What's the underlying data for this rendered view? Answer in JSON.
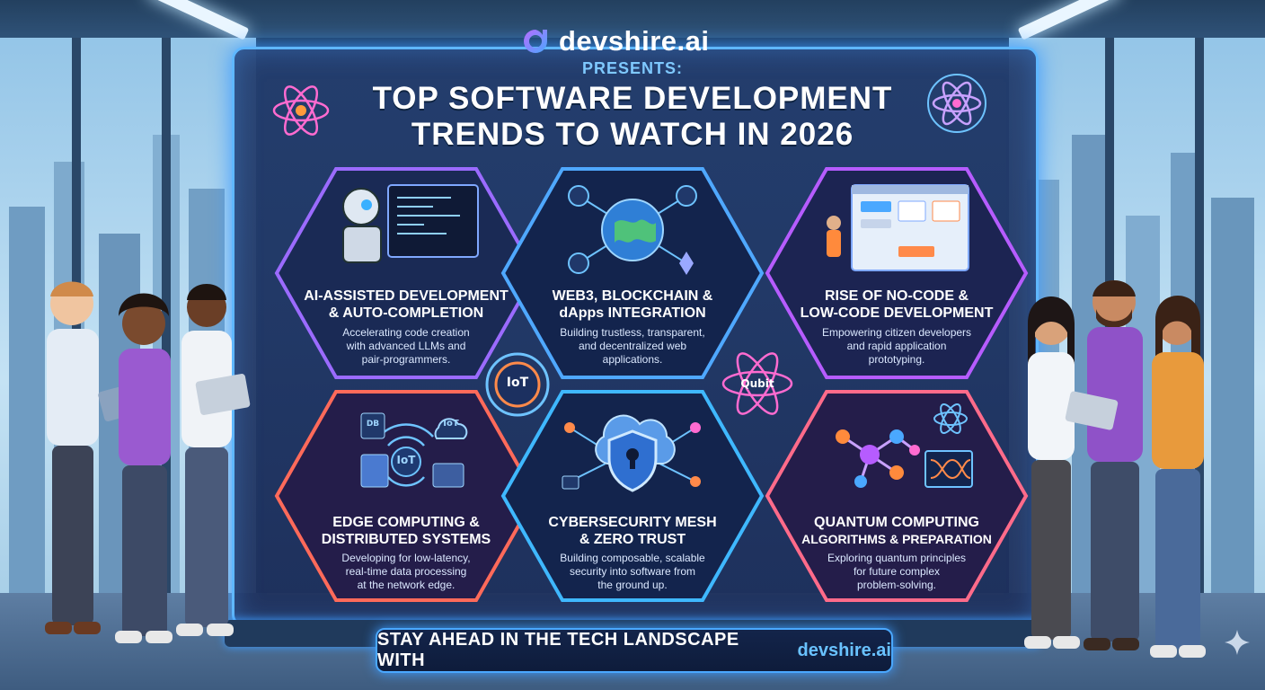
{
  "header": {
    "brand": "devshire.ai",
    "presents": "PRESENTS:",
    "title_line1": "TOP SOFTWARE DEVELOPMENT",
    "title_line2": "TRENDS TO WATCH IN 2026"
  },
  "cards": [
    {
      "title1": "AI-ASSISTED DEVELOPMENT",
      "title2": "& AUTO-COMPLETION",
      "desc1": "Accelerating code creation",
      "desc2": "with advanced LLMs and",
      "desc3": "pair-programmers.",
      "color": "#9b6bff"
    },
    {
      "title1": "WEB3, BLOCKCHAIN &",
      "title2": "dApps INTEGRATION",
      "desc1": "Building trustless, transparent,",
      "desc2": "and decentralized web",
      "desc3": "applications.",
      "color": "#4fa8ff"
    },
    {
      "title1": "RISE OF NO-CODE &",
      "title2": "LOW-CODE DEVELOPMENT",
      "desc1": "Empowering citizen developers",
      "desc2": "and rapid application",
      "desc3": "prototyping.",
      "color": "#b65cff"
    },
    {
      "title1": "EDGE COMPUTING &",
      "title2": "DISTRIBUTED SYSTEMS",
      "desc1": "Developing for low-latency,",
      "desc2": "real-time data processing",
      "desc3": "at the network edge.",
      "color": "#ff6a5a"
    },
    {
      "title1": "CYBERSECURITY MESH",
      "title2": "& ZERO TRUST",
      "desc1": "Building composable, scalable",
      "desc2": "security into software from",
      "desc3": "the ground up.",
      "color": "#3fb8ff"
    },
    {
      "title1": "QUANTUM COMPUTING",
      "title2": "ALGORITHMS & PREPARATION",
      "desc1": "Exploring quantum principles",
      "desc2": "for future complex",
      "desc3": "problem-solving.",
      "color": "#ff6b8a"
    }
  ],
  "badges": {
    "iot_center": "IoT",
    "qubit": "Qubit",
    "iot_edge": "IoT",
    "iot_cloud": "IoT",
    "db_label": "DB"
  },
  "footer": {
    "text": "STAY AHEAD IN THE TECH LANDSCAPE WITH",
    "brand": "devshire.ai"
  },
  "colors": {
    "accent": "#4aa8ff",
    "brand_blue": "#69c2ff",
    "title_white": "#ffffff"
  }
}
